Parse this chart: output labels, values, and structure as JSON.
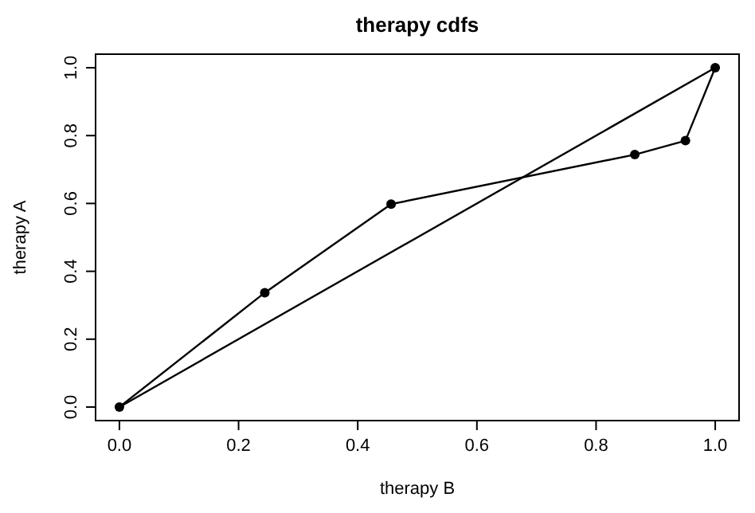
{
  "chart_data": {
    "type": "line",
    "title": "therapy cdfs",
    "xlabel": "therapy B",
    "ylabel": "therapy A",
    "xlim": [
      -0.04,
      1.04
    ],
    "ylim": [
      -0.04,
      1.04
    ],
    "xticks": [
      {
        "value": 0,
        "label": "0.0"
      },
      0.2,
      0.4,
      0.6,
      0.8,
      {
        "value": 1,
        "label": "1.0"
      }
    ],
    "yticks": [
      {
        "value": 0,
        "label": "0.0"
      },
      0.2,
      0.4,
      0.6,
      0.8,
      {
        "value": 1,
        "label": "1.0"
      }
    ],
    "grid": false,
    "series": [
      {
        "color": "#000000",
        "marker": "circle",
        "x": [
          0,
          0.244,
          0.456,
          0.865,
          0.95,
          1
        ],
        "values": [
          0,
          0.337,
          0.598,
          0.744,
          0.785,
          1
        ]
      },
      {
        "color": "#000000",
        "marker": "none",
        "x": [
          0,
          1
        ],
        "values": [
          0,
          1
        ]
      }
    ]
  }
}
